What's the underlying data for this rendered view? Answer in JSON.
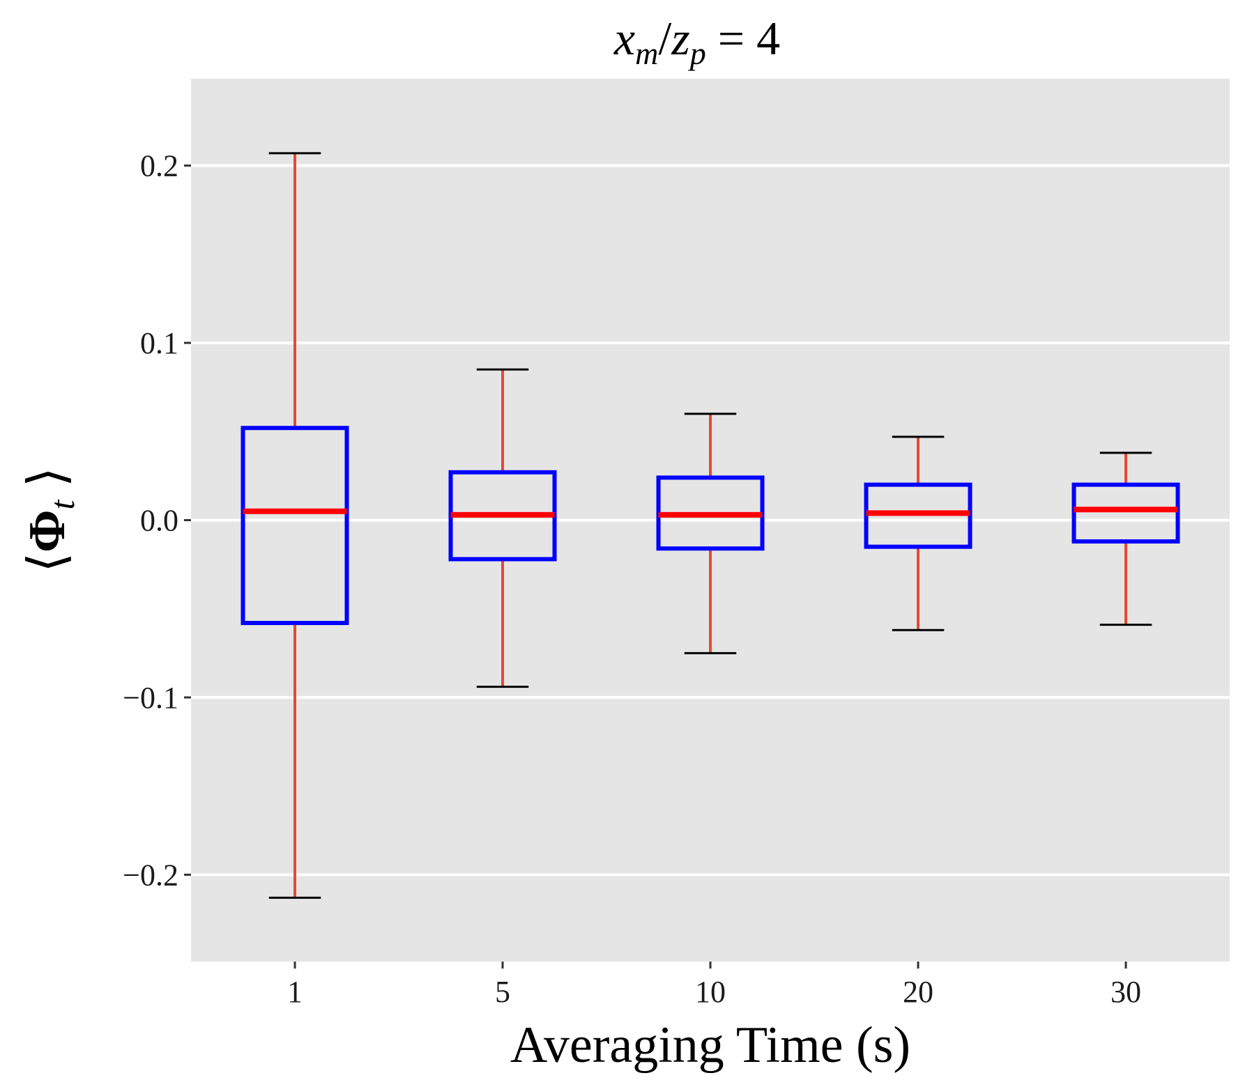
{
  "chart_data": {
    "type": "boxplot",
    "title": "x_m/z_p = 4",
    "title_parts": {
      "a": "x",
      "a_sub": "m",
      "b": "z",
      "b_sub": "p",
      "rhs": "4"
    },
    "xlabel": "Averaging Time (s)",
    "ylabel": "⟨Φ_t⟩",
    "ylabel_parts": {
      "left": "⟨",
      "sym": "Φ",
      "sub": "t",
      "right": "⟩"
    },
    "categories": [
      "1",
      "5",
      "10",
      "20",
      "30"
    ],
    "boxes": [
      {
        "category": "1",
        "whisker_low": -0.213,
        "q1": -0.058,
        "median": 0.005,
        "q3": 0.052,
        "whisker_high": 0.207
      },
      {
        "category": "5",
        "whisker_low": -0.094,
        "q1": -0.022,
        "median": 0.003,
        "q3": 0.027,
        "whisker_high": 0.085
      },
      {
        "category": "10",
        "whisker_low": -0.075,
        "q1": -0.016,
        "median": 0.003,
        "q3": 0.024,
        "whisker_high": 0.06
      },
      {
        "category": "20",
        "whisker_low": -0.062,
        "q1": -0.015,
        "median": 0.004,
        "q3": 0.02,
        "whisker_high": 0.047
      },
      {
        "category": "30",
        "whisker_low": -0.059,
        "q1": -0.012,
        "median": 0.006,
        "q3": 0.02,
        "whisker_high": 0.038
      }
    ],
    "yticks": [
      -0.2,
      -0.1,
      0.0,
      0.1,
      0.2
    ],
    "ytick_labels": [
      "−0.2",
      "−0.1",
      "0.0",
      "0.1",
      "0.2"
    ],
    "ylim": [
      -0.249,
      0.249
    ],
    "grid": true,
    "colors": {
      "panel_bg": "#e5e5e5",
      "grid": "#ffffff",
      "box_outline": "#0000ff",
      "median": "#ff0000",
      "whisker": "#e34a33",
      "whisker_cap": "#000000"
    }
  }
}
